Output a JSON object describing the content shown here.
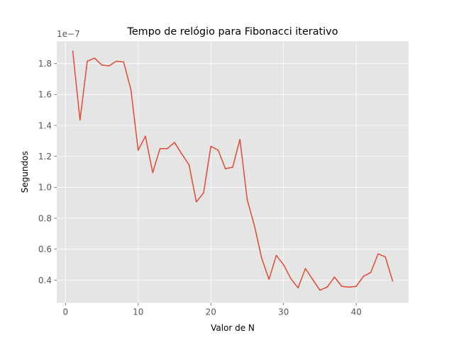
{
  "chart_data": {
    "type": "line",
    "title": "Tempo de relógio para Fibonacci iterativo",
    "xlabel": "Valor de N",
    "ylabel": "Segundos",
    "y_offset_label": "1e−7",
    "xlim": [
      -1.2,
      47.2
    ],
    "ylim": [
      0.253,
      1.945
    ],
    "x_ticks": [
      0,
      10,
      20,
      30,
      40
    ],
    "y_ticks": [
      0.4,
      0.6,
      0.8,
      1.0,
      1.2,
      1.4,
      1.6,
      1.8
    ],
    "x_tick_labels": [
      "0",
      "10",
      "20",
      "30",
      "40"
    ],
    "y_tick_labels": [
      "0.4",
      "0.6",
      "0.8",
      "1.0",
      "1.2",
      "1.4",
      "1.6",
      "1.8"
    ],
    "grid": true,
    "background": "#e5e5e5",
    "grid_color": "#ffffff",
    "series": [
      {
        "color": "#e24a33",
        "x": [
          1,
          2,
          3,
          4,
          5,
          6,
          7,
          8,
          9,
          10,
          11,
          12,
          13,
          14,
          15,
          16,
          17,
          18,
          19,
          20,
          21,
          22,
          23,
          24,
          25,
          26,
          27,
          28,
          29,
          30,
          31,
          32,
          33,
          34,
          35,
          36,
          37,
          38,
          39,
          40,
          41,
          42,
          43,
          44,
          45
        ],
        "values": [
          1.88,
          1.435,
          1.815,
          1.835,
          1.79,
          1.785,
          1.815,
          1.81,
          1.63,
          1.24,
          1.33,
          1.095,
          1.25,
          1.25,
          1.29,
          1.215,
          1.145,
          0.905,
          0.965,
          1.265,
          1.24,
          1.12,
          1.13,
          1.31,
          0.92,
          0.75,
          0.54,
          0.405,
          0.56,
          0.5,
          0.41,
          0.35,
          0.475,
          0.405,
          0.335,
          0.355,
          0.42,
          0.36,
          0.355,
          0.36,
          0.425,
          0.45,
          0.57,
          0.55,
          0.395
        ]
      }
    ]
  }
}
